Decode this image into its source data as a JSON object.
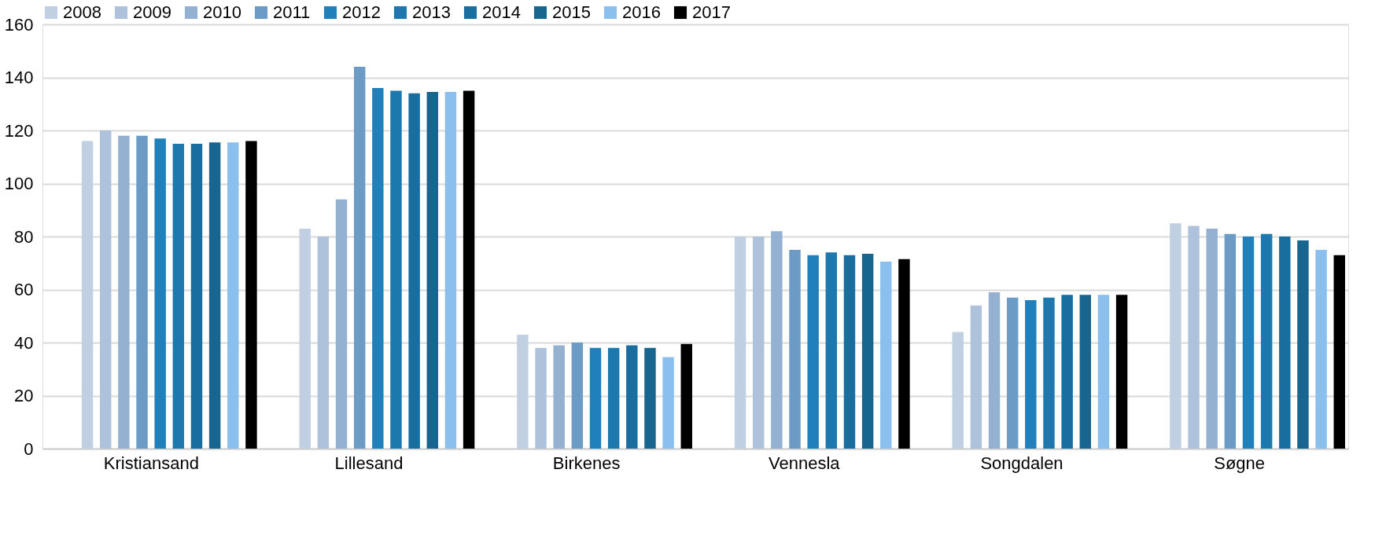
{
  "chart_data": {
    "type": "bar",
    "categories": [
      "Kristiansand",
      "Lillesand",
      "Birkenes",
      "Vennesla",
      "Songdalen",
      "Søgne"
    ],
    "series": [
      {
        "name": "2008",
        "color": "#c0cfe2",
        "values": [
          116,
          83,
          43,
          80,
          44,
          85
        ]
      },
      {
        "name": "2009",
        "color": "#aec3db",
        "values": [
          120,
          80,
          38,
          80,
          54,
          84
        ]
      },
      {
        "name": "2010",
        "color": "#94b1d1",
        "values": [
          118,
          94,
          39,
          82,
          59,
          83
        ]
      },
      {
        "name": "2011",
        "color": "#6c9bc6",
        "values": [
          118,
          144,
          40,
          75,
          57,
          81
        ]
      },
      {
        "name": "2012",
        "color": "#2080bb",
        "values": [
          117,
          136,
          38,
          73,
          56,
          80
        ]
      },
      {
        "name": "2013",
        "color": "#1c78ad",
        "values": [
          115,
          135,
          38,
          74,
          57,
          81
        ]
      },
      {
        "name": "2014",
        "color": "#1a6d9f",
        "values": [
          115,
          134,
          39,
          73,
          58,
          80
        ]
      },
      {
        "name": "2015",
        "color": "#18658f",
        "values": [
          115.5,
          134.5,
          38,
          73.5,
          58,
          78.5
        ]
      },
      {
        "name": "2016",
        "color": "#8bbfee",
        "values": [
          115.5,
          134.5,
          34.5,
          70.5,
          58,
          75
        ]
      },
      {
        "name": "2017",
        "color": "#000000",
        "values": [
          116,
          135,
          39.5,
          71.5,
          58,
          73
        ]
      }
    ],
    "ylim": [
      0,
      160
    ],
    "yticks": [
      0,
      20,
      40,
      60,
      80,
      100,
      120,
      140,
      160
    ],
    "grid": "y",
    "legend": "top"
  }
}
